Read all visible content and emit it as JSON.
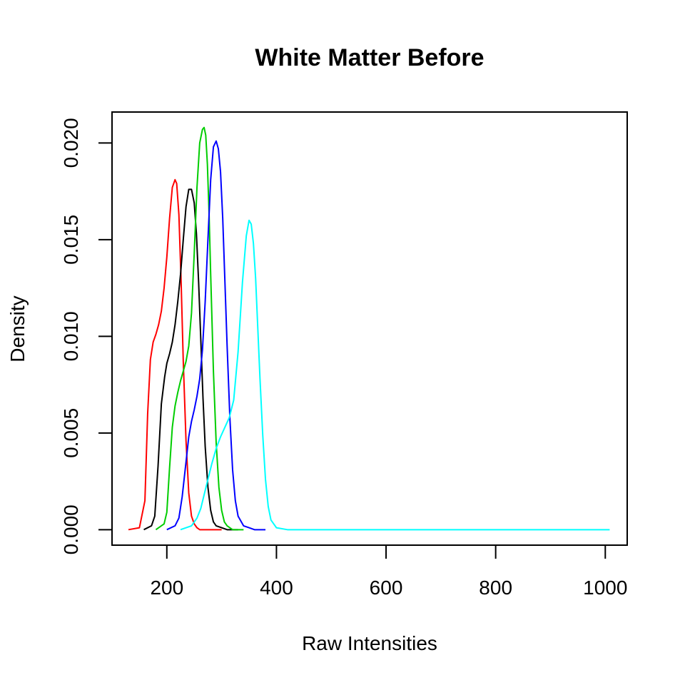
{
  "chart_data": {
    "type": "line",
    "title": "White Matter Before",
    "xlabel": "Raw Intensities",
    "ylabel": "Density",
    "xlim": [
      100,
      1040
    ],
    "ylim": [
      -0.0008,
      0.0216
    ],
    "x_ticks": [
      200,
      400,
      600,
      800,
      1000
    ],
    "x_tick_labels": [
      "200",
      "400",
      "600",
      "800",
      "1000"
    ],
    "y_ticks": [
      0.0,
      0.005,
      0.01,
      0.015,
      0.02
    ],
    "y_tick_labels": [
      "0.000",
      "0.005",
      "0.010",
      "0.015",
      "0.020"
    ],
    "grid": false,
    "legend": "none",
    "series": [
      {
        "color": "#ff0000",
        "x": [
          130,
          150,
          160,
          165,
          170,
          175,
          180,
          185,
          190,
          195,
          200,
          205,
          210,
          215,
          218,
          222,
          226,
          230,
          235,
          240,
          245,
          250,
          255,
          260,
          265,
          270,
          280,
          290,
          300
        ],
        "y": [
          0.0,
          0.0001,
          0.0015,
          0.006,
          0.0088,
          0.0097,
          0.0101,
          0.0106,
          0.0113,
          0.0125,
          0.0141,
          0.0161,
          0.0177,
          0.0181,
          0.0179,
          0.0163,
          0.0129,
          0.0087,
          0.0046,
          0.0019,
          0.0007,
          0.0003,
          0.0001,
          0.0,
          0.0,
          0.0,
          0.0,
          0.0,
          0.0
        ]
      },
      {
        "color": "#000000",
        "x": [
          158,
          172,
          178,
          184,
          190,
          196,
          200,
          205,
          210,
          215,
          220,
          225,
          230,
          235,
          240,
          245,
          250,
          254,
          258,
          262,
          266,
          270,
          275,
          280,
          285,
          290,
          300,
          310,
          330
        ],
        "y": [
          0.0,
          0.0002,
          0.0007,
          0.0033,
          0.0065,
          0.0079,
          0.0086,
          0.0091,
          0.0097,
          0.0106,
          0.0118,
          0.0132,
          0.015,
          0.0167,
          0.0176,
          0.0176,
          0.0169,
          0.0153,
          0.0128,
          0.0098,
          0.0068,
          0.0043,
          0.0022,
          0.001,
          0.0004,
          0.0002,
          0.0001,
          0.0,
          0.0
        ]
      },
      {
        "color": "#00cd00",
        "x": [
          180,
          195,
          200,
          205,
          210,
          215,
          220,
          225,
          230,
          235,
          240,
          245,
          250,
          255,
          260,
          265,
          268,
          271,
          274,
          277,
          280,
          285,
          290,
          295,
          300,
          305,
          310,
          320,
          340
        ],
        "y": [
          0.0,
          0.0003,
          0.0009,
          0.0032,
          0.0053,
          0.0064,
          0.0071,
          0.0077,
          0.0082,
          0.0087,
          0.0095,
          0.0112,
          0.0143,
          0.0177,
          0.02,
          0.0207,
          0.0208,
          0.0204,
          0.0189,
          0.0164,
          0.0132,
          0.0082,
          0.0045,
          0.0022,
          0.001,
          0.0004,
          0.0002,
          0.0,
          0.0
        ]
      },
      {
        "color": "#0000ff",
        "x": [
          200,
          215,
          222,
          228,
          235,
          240,
          245,
          250,
          255,
          260,
          265,
          270,
          275,
          280,
          285,
          290,
          294,
          298,
          302,
          306,
          310,
          315,
          320,
          325,
          330,
          340,
          350,
          360,
          380
        ],
        "y": [
          0.0,
          0.0002,
          0.0006,
          0.0017,
          0.0035,
          0.0048,
          0.0056,
          0.0062,
          0.0069,
          0.0078,
          0.0093,
          0.0118,
          0.015,
          0.0181,
          0.0198,
          0.0201,
          0.0197,
          0.0185,
          0.0161,
          0.0128,
          0.0095,
          0.0058,
          0.0031,
          0.0015,
          0.0007,
          0.0002,
          0.0001,
          0.0,
          0.0
        ]
      },
      {
        "color": "#00ffff",
        "x": [
          225,
          245,
          255,
          262,
          268,
          275,
          282,
          290,
          298,
          306,
          314,
          322,
          330,
          338,
          345,
          350,
          354,
          358,
          362,
          366,
          370,
          375,
          380,
          385,
          390,
          400,
          420,
          450,
          500,
          600,
          700,
          800,
          900,
          1000,
          1008
        ],
        "y": [
          0.0,
          0.0002,
          0.0006,
          0.0011,
          0.0018,
          0.0026,
          0.0034,
          0.0042,
          0.0048,
          0.0053,
          0.0058,
          0.0067,
          0.0092,
          0.0128,
          0.0152,
          0.016,
          0.0158,
          0.0148,
          0.013,
          0.0104,
          0.0078,
          0.0049,
          0.0026,
          0.0012,
          0.0005,
          0.0001,
          0.0,
          0.0,
          0.0,
          0.0,
          0.0,
          0.0,
          0.0,
          0.0,
          0.0
        ]
      }
    ]
  }
}
